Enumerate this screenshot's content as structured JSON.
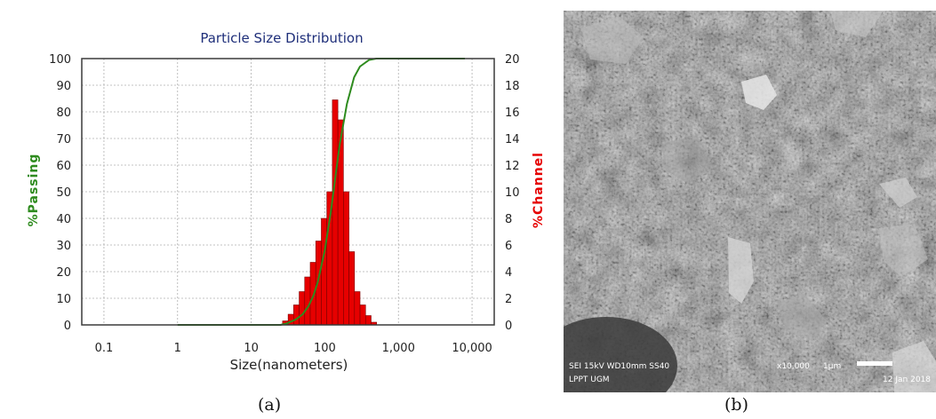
{
  "figure": {
    "caption_a": "(a)",
    "caption_b": "(b)"
  },
  "chart_data": {
    "type": "bar",
    "title": "Particle Size Distribution",
    "xlabel": "Size(nanometers)",
    "ylabel_left": "%Passing",
    "ylabel_right": "%Channel",
    "x_scale": "log",
    "xlim": [
      0.05,
      20000
    ],
    "x_ticks": [
      0.1,
      1,
      10,
      100,
      1000,
      10000
    ],
    "x_tick_labels": [
      "0.1",
      "1",
      "10",
      "100",
      "1,000",
      "10,000"
    ],
    "ylim_left": [
      0,
      100
    ],
    "y_left_ticks": [
      0,
      10,
      20,
      30,
      40,
      50,
      60,
      70,
      80,
      90,
      100
    ],
    "ylim_right": [
      0,
      20
    ],
    "y_right_ticks": [
      0,
      2,
      4,
      6,
      8,
      10,
      12,
      14,
      16,
      18,
      20
    ],
    "grid": true,
    "colors": {
      "channel": "#e60000",
      "passing": "#2e8b1e",
      "grid": "#b0b0b0",
      "title": "#1f2f7a"
    },
    "series": [
      {
        "name": "%Channel",
        "axis": "right",
        "x": [
          29.1,
          34.6,
          41.1,
          48.9,
          58.1,
          69.1,
          82.2,
          97.7,
          116.1,
          138.1,
          164.2,
          195.2,
          232.1,
          275.9,
          328.1,
          390.1,
          463.8
        ],
        "values": [
          0.3,
          0.8,
          1.5,
          2.5,
          3.6,
          4.7,
          6.3,
          8.0,
          10.0,
          16.9,
          15.4,
          10.0,
          5.5,
          2.5,
          1.5,
          0.7,
          0.2
        ]
      },
      {
        "name": "%Passing",
        "axis": "left",
        "x": [
          1,
          10,
          25,
          30,
          40,
          50,
          60,
          70,
          80,
          100,
          120,
          140,
          160,
          200,
          250,
          300,
          400,
          500,
          800,
          8000
        ],
        "values": [
          0,
          0,
          0,
          0.5,
          2,
          4,
          7,
          11,
          16,
          28,
          42,
          56,
          68,
          83,
          93,
          97,
          99.5,
          100,
          100,
          100
        ]
      }
    ]
  },
  "sem": {
    "info_left_line1": "SEI    15kV    WD10mm   SS40",
    "info_left_line2": "LPPT UGM",
    "magnification": "x10,000",
    "scale": "1µm",
    "date": "12 Jan 2018"
  }
}
